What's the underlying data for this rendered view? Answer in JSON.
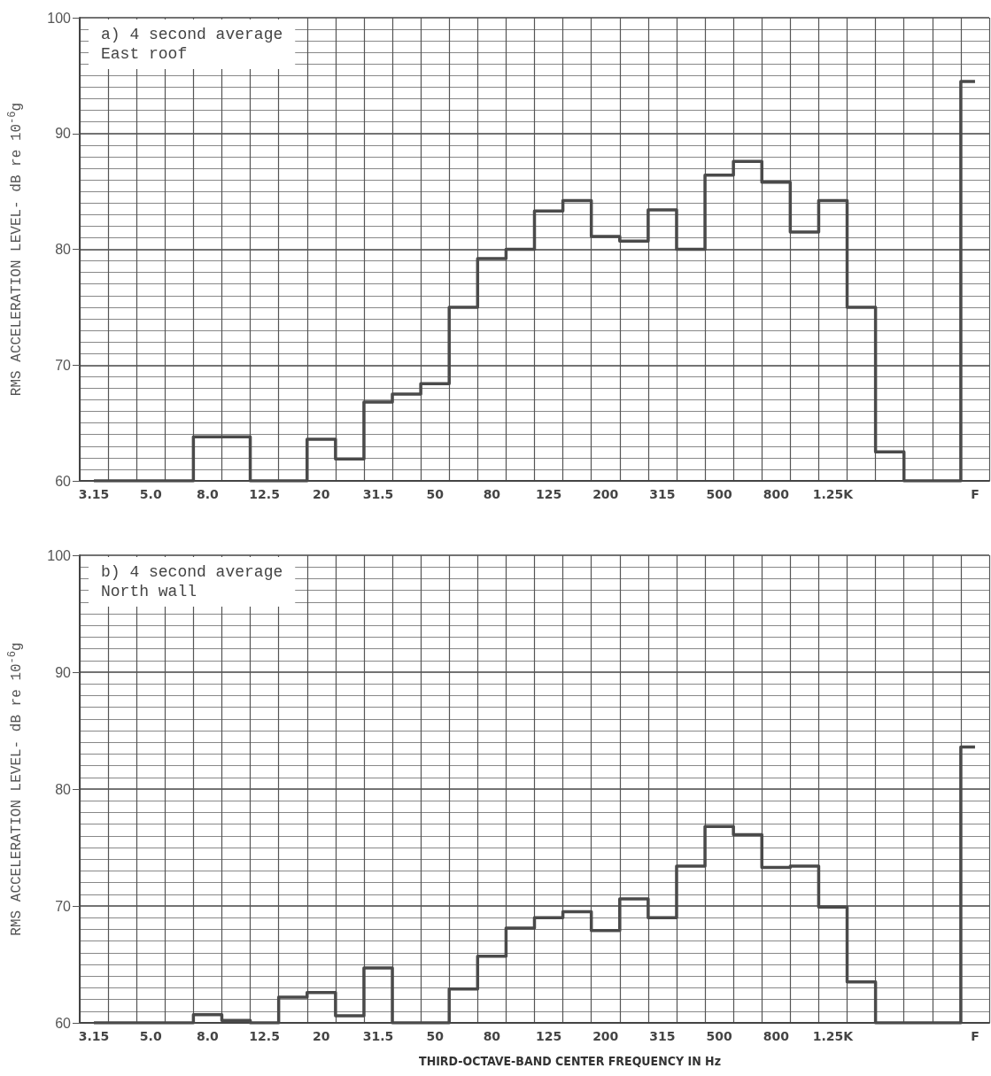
{
  "chart_data": [
    {
      "type": "step",
      "title": "a) 4 second average",
      "subtitle": "East roof",
      "ylabel": "RMS ACCELERATION LEVEL- dB re 10$^{-6}$g",
      "categories": [
        "3.15",
        null,
        "5.0",
        null,
        "8.0",
        null,
        "12.5",
        null,
        "20",
        null,
        "31.5",
        null,
        "50",
        null,
        "80",
        null,
        "125",
        null,
        "200",
        null,
        "315",
        null,
        "500",
        null,
        "800",
        null,
        "1.25K",
        null,
        null,
        null,
        null,
        "F"
      ],
      "values": [
        60,
        60,
        60,
        60,
        63.8,
        63.8,
        60,
        60,
        63.6,
        61.9,
        66.8,
        67.5,
        68.4,
        75,
        79.2,
        80,
        83.3,
        84.2,
        81.1,
        80.7,
        83.4,
        80,
        86.4,
        87.6,
        85.8,
        81.5,
        84.2,
        75,
        62.5,
        60,
        60,
        94.5
      ],
      "color": "#4a4a4a",
      "ylim": [
        60,
        100
      ],
      "yticks": [
        60,
        70,
        80,
        90,
        100
      ],
      "grid": true
    },
    {
      "type": "step",
      "title": "b) 4 second average",
      "subtitle": "North wall",
      "ylabel": "RMS ACCELERATION LEVEL- dB re 10$^{-6}$g",
      "xlabel": "THIRD-OCTAVE-BAND CENTER FREQUENCY IN Hz",
      "categories": [
        "3.15",
        null,
        "5.0",
        null,
        "8.0",
        null,
        "12.5",
        null,
        "20",
        null,
        "31.5",
        null,
        "50",
        null,
        "80",
        null,
        "125",
        null,
        "200",
        null,
        "315",
        null,
        "500",
        null,
        "800",
        null,
        "1.25K",
        null,
        null,
        null,
        null,
        "F"
      ],
      "values": [
        60,
        60,
        60,
        60,
        60.7,
        60.2,
        60,
        62.2,
        62.6,
        60.6,
        64.7,
        60,
        60,
        62.9,
        65.7,
        68.1,
        69,
        69.5,
        67.9,
        70.6,
        69,
        73.4,
        76.8,
        76.1,
        73.3,
        73.4,
        69.9,
        63.5,
        60,
        60,
        60,
        83.6
      ],
      "color": "#4a4a4a",
      "ylim": [
        60,
        100
      ],
      "yticks": [
        60,
        70,
        80,
        90,
        100
      ],
      "grid": true
    }
  ]
}
